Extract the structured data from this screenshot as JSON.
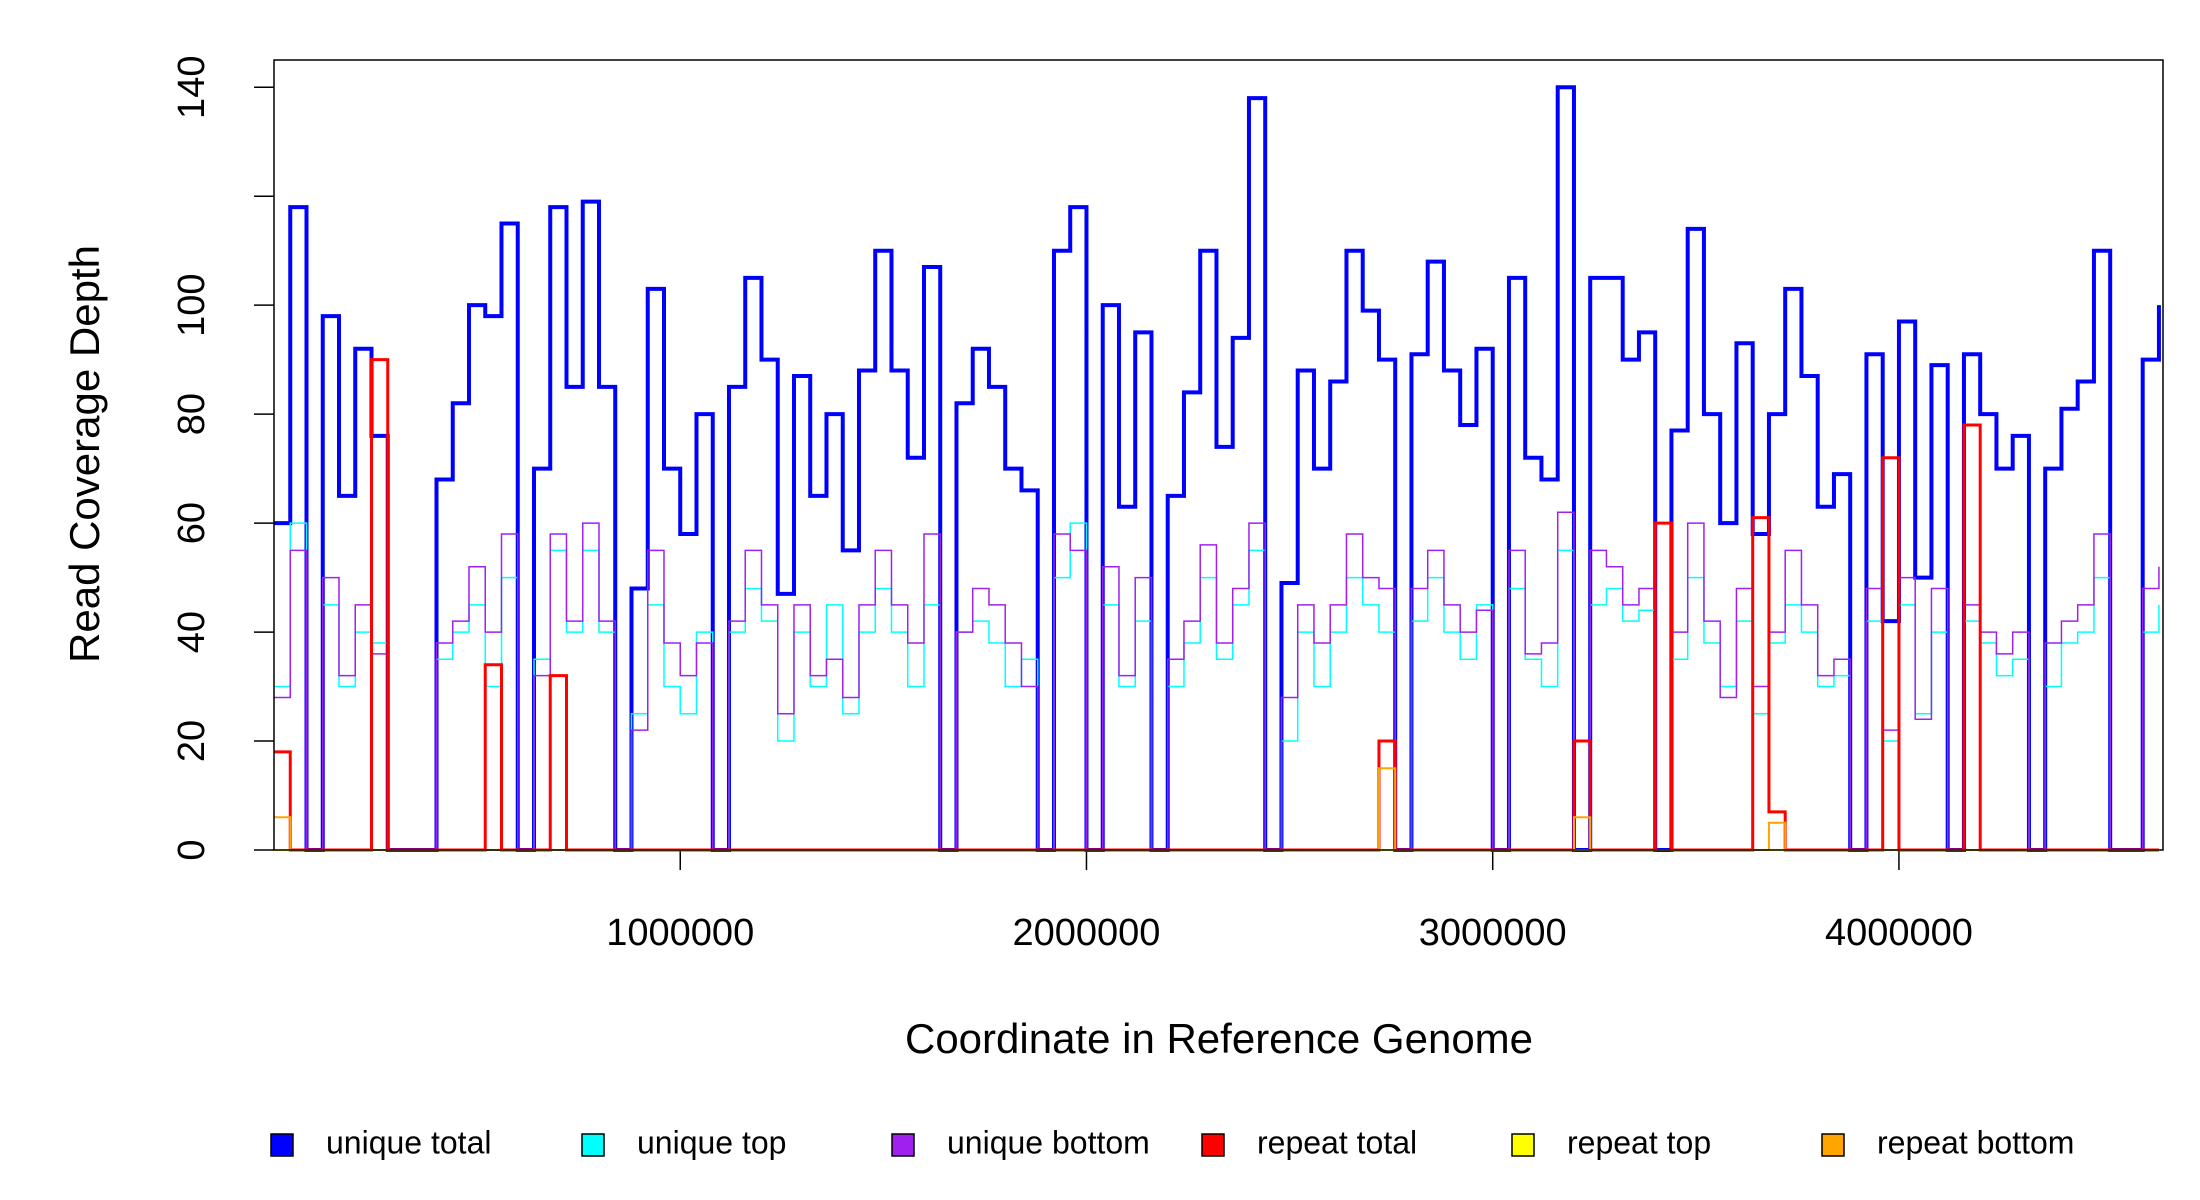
{
  "chart_data": {
    "type": "line",
    "step": true,
    "xlabel": "Coordinate in Reference Genome",
    "ylabel": "Read Coverage Depth",
    "xlim": [
      0,
      4650000
    ],
    "ylim": [
      0,
      145
    ],
    "xticks": [
      1000000,
      2000000,
      3000000,
      4000000
    ],
    "yticks": [
      0,
      20,
      40,
      60,
      80,
      100,
      {
        "value": 120,
        "label": null
      },
      140
    ],
    "legend": "bottom",
    "x": [
      0,
      40000,
      80000,
      120000,
      160000,
      200000,
      240000,
      280000,
      320000,
      360000,
      400000,
      440000,
      480000,
      520000,
      560000,
      600000,
      640000,
      680000,
      720000,
      760000,
      800000,
      840000,
      880000,
      920000,
      960000,
      1000000,
      1040000,
      1080000,
      1120000,
      1160000,
      1200000,
      1240000,
      1280000,
      1320000,
      1360000,
      1400000,
      1440000,
      1480000,
      1520000,
      1560000,
      1600000,
      1640000,
      1680000,
      1720000,
      1760000,
      1800000,
      1840000,
      1880000,
      1920000,
      1960000,
      2000000,
      2040000,
      2080000,
      2120000,
      2160000,
      2200000,
      2240000,
      2280000,
      2320000,
      2360000,
      2400000,
      2440000,
      2480000,
      2520000,
      2560000,
      2600000,
      2640000,
      2680000,
      2720000,
      2760000,
      2800000,
      2840000,
      2880000,
      2920000,
      2960000,
      3000000,
      3040000,
      3080000,
      3120000,
      3160000,
      3200000,
      3240000,
      3280000,
      3320000,
      3360000,
      3400000,
      3440000,
      3480000,
      3520000,
      3560000,
      3600000,
      3640000,
      3680000,
      3720000,
      3760000,
      3800000,
      3840000,
      3880000,
      3920000,
      3960000,
      4000000,
      4040000,
      4080000,
      4120000,
      4160000,
      4200000,
      4240000,
      4280000,
      4320000,
      4360000,
      4400000,
      4440000,
      4480000,
      4520000,
      4560000,
      4600000,
      4640000
    ],
    "series": [
      {
        "name": "unique total",
        "color": "#0000ff",
        "width": 4,
        "values": [
          60,
          118,
          0,
          98,
          65,
          92,
          76,
          0,
          0,
          0,
          68,
          82,
          100,
          98,
          115,
          0,
          70,
          118,
          85,
          119,
          85,
          0,
          48,
          103,
          70,
          58,
          80,
          0,
          85,
          105,
          90,
          47,
          87,
          65,
          80,
          55,
          88,
          110,
          88,
          72,
          107,
          0,
          82,
          92,
          85,
          70,
          66,
          0,
          110,
          118,
          0,
          100,
          63,
          95,
          0,
          65,
          84,
          110,
          74,
          94,
          138,
          0,
          49,
          88,
          70,
          86,
          110,
          99,
          90,
          0,
          91,
          108,
          88,
          78,
          92,
          0,
          105,
          72,
          68,
          140,
          0,
          105,
          105,
          90,
          95,
          0,
          77,
          114,
          80,
          60,
          93,
          58,
          80,
          103,
          87,
          63,
          69,
          0,
          91,
          42,
          97,
          50,
          89,
          0,
          91,
          80,
          70,
          76,
          0,
          70,
          81,
          86,
          110,
          0,
          0,
          90,
          100
        ]
      },
      {
        "name": "unique top",
        "color": "#00ffff",
        "width": 1.5,
        "values": [
          30,
          60,
          0,
          45,
          30,
          40,
          38,
          0,
          0,
          0,
          35,
          40,
          45,
          30,
          50,
          0,
          35,
          55,
          40,
          55,
          40,
          0,
          25,
          45,
          30,
          25,
          40,
          0,
          40,
          48,
          42,
          20,
          40,
          30,
          45,
          25,
          40,
          48,
          40,
          30,
          45,
          0,
          40,
          42,
          38,
          30,
          35,
          0,
          50,
          60,
          0,
          45,
          30,
          42,
          0,
          30,
          38,
          50,
          35,
          45,
          55,
          0,
          20,
          40,
          30,
          40,
          50,
          45,
          40,
          0,
          42,
          50,
          40,
          35,
          45,
          0,
          48,
          35,
          30,
          55,
          0,
          45,
          48,
          42,
          44,
          0,
          35,
          50,
          38,
          30,
          42,
          25,
          38,
          45,
          40,
          30,
          32,
          0,
          42,
          20,
          45,
          25,
          40,
          0,
          42,
          38,
          32,
          35,
          0,
          30,
          38,
          40,
          50,
          0,
          0,
          40,
          45
        ]
      },
      {
        "name": "unique bottom",
        "color": "#a020f0",
        "width": 1.5,
        "values": [
          28,
          55,
          0,
          50,
          32,
          45,
          36,
          0,
          0,
          0,
          38,
          42,
          52,
          40,
          58,
          0,
          32,
          58,
          42,
          60,
          42,
          0,
          22,
          55,
          38,
          32,
          38,
          0,
          42,
          55,
          45,
          25,
          45,
          32,
          35,
          28,
          45,
          55,
          45,
          38,
          58,
          0,
          40,
          48,
          45,
          38,
          30,
          0,
          58,
          55,
          0,
          52,
          32,
          50,
          0,
          35,
          42,
          56,
          38,
          48,
          60,
          0,
          28,
          45,
          38,
          45,
          58,
          50,
          48,
          0,
          48,
          55,
          45,
          40,
          44,
          0,
          55,
          36,
          38,
          62,
          0,
          55,
          52,
          45,
          48,
          0,
          40,
          60,
          42,
          28,
          48,
          30,
          40,
          55,
          45,
          32,
          35,
          0,
          48,
          22,
          50,
          24,
          48,
          0,
          45,
          40,
          36,
          40,
          0,
          38,
          42,
          45,
          58,
          0,
          0,
          48,
          52
        ]
      },
      {
        "name": "repeat total",
        "color": "#ff0000",
        "width": 3,
        "values": [
          18,
          0,
          0,
          0,
          0,
          0,
          90,
          0,
          0,
          0,
          0,
          0,
          0,
          34,
          0,
          0,
          0,
          32,
          0,
          0,
          0,
          0,
          0,
          0,
          0,
          0,
          0,
          0,
          0,
          0,
          0,
          0,
          0,
          0,
          0,
          0,
          0,
          0,
          0,
          0,
          0,
          0,
          0,
          0,
          0,
          0,
          0,
          0,
          0,
          0,
          0,
          0,
          0,
          0,
          0,
          0,
          0,
          0,
          0,
          0,
          0,
          0,
          0,
          0,
          0,
          0,
          0,
          0,
          20,
          0,
          0,
          0,
          0,
          0,
          0,
          0,
          0,
          0,
          0,
          0,
          20,
          0,
          0,
          0,
          0,
          60,
          0,
          0,
          0,
          0,
          0,
          61,
          7,
          0,
          0,
          0,
          0,
          0,
          0,
          72,
          0,
          0,
          0,
          0,
          78,
          0,
          0,
          0,
          0,
          0,
          0,
          0,
          0,
          0,
          0,
          0,
          0
        ]
      },
      {
        "name": "repeat top",
        "color": "#ffff00",
        "width": 2,
        "values": [
          0,
          0,
          0,
          0,
          0,
          0,
          0,
          0,
          0,
          0,
          0,
          0,
          0,
          0,
          0,
          0,
          0,
          0,
          0,
          0,
          0,
          0,
          0,
          0,
          0,
          0,
          0,
          0,
          0,
          0,
          0,
          0,
          0,
          0,
          0,
          0,
          0,
          0,
          0,
          0,
          0,
          0,
          0,
          0,
          0,
          0,
          0,
          0,
          0,
          0,
          0,
          0,
          0,
          0,
          0,
          0,
          0,
          0,
          0,
          0,
          0,
          0,
          0,
          0,
          0,
          0,
          0,
          0,
          0,
          0,
          0,
          0,
          0,
          0,
          0,
          0,
          0,
          0,
          0,
          0,
          0,
          0,
          0,
          0,
          0,
          0,
          0,
          0,
          0,
          0,
          0,
          0,
          0,
          0,
          0,
          0,
          0,
          0,
          0,
          0,
          0,
          0,
          0,
          0,
          0,
          0,
          0,
          0,
          0,
          0,
          0,
          0,
          0,
          0,
          0,
          0,
          0
        ]
      },
      {
        "name": "repeat bottom",
        "color": "#ffa500",
        "width": 2,
        "values": [
          6,
          0,
          0,
          0,
          0,
          0,
          0,
          0,
          0,
          0,
          0,
          0,
          0,
          0,
          0,
          0,
          0,
          0,
          0,
          0,
          0,
          0,
          0,
          0,
          0,
          0,
          0,
          0,
          0,
          0,
          0,
          0,
          0,
          0,
          0,
          0,
          0,
          0,
          0,
          0,
          0,
          0,
          0,
          0,
          0,
          0,
          0,
          0,
          0,
          0,
          0,
          0,
          0,
          0,
          0,
          0,
          0,
          0,
          0,
          0,
          0,
          0,
          0,
          0,
          0,
          0,
          0,
          0,
          15,
          0,
          0,
          0,
          0,
          0,
          0,
          0,
          0,
          0,
          0,
          0,
          6,
          0,
          0,
          0,
          0,
          0,
          0,
          0,
          0,
          0,
          0,
          0,
          5,
          0,
          0,
          0,
          0,
          0,
          0,
          0,
          0,
          0,
          0,
          0,
          0,
          0,
          0,
          0,
          0,
          0,
          0,
          0,
          0,
          0,
          0,
          0,
          0
        ]
      }
    ]
  }
}
